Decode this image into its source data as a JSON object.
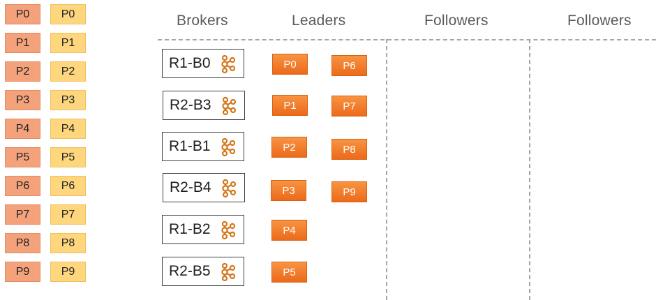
{
  "partitions": {
    "left_column": [
      "P0",
      "P1",
      "P2",
      "P3",
      "P4",
      "P5",
      "P6",
      "P7",
      "P8",
      "P9"
    ],
    "right_column": [
      "P0",
      "P1",
      "P2",
      "P3",
      "P4",
      "P5",
      "P6",
      "P7",
      "P8",
      "P9"
    ]
  },
  "headers": {
    "brokers": "Brokers",
    "leaders": "Leaders",
    "followers_1": "Followers",
    "followers_2": "Followers"
  },
  "brokers": [
    "R1-B0",
    "R2-B3",
    "R1-B1",
    "R2-B4",
    "R1-B2",
    "R2-B5"
  ],
  "broker_icon": "kafka-icon",
  "leaders": {
    "column_1": [
      "P0",
      "P1",
      "P2",
      "P3",
      "P4",
      "P5"
    ],
    "column_2": [
      "P6",
      "P7",
      "P8",
      "P9"
    ]
  },
  "colors": {
    "partition_red": "#f4a27c",
    "partition_yellow": "#fdd67e",
    "leader_orange": "#f28030",
    "kafka_icon": "#d4761a",
    "dash_line": "#a6a6a6"
  }
}
